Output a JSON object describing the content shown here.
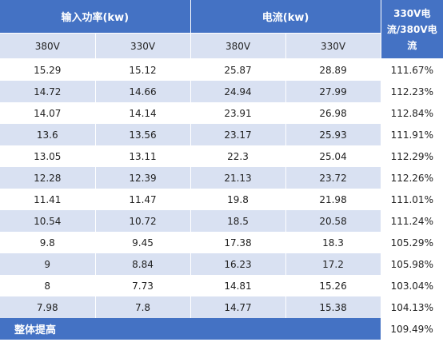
{
  "chart_data": {
    "type": "table",
    "group_headers": {
      "input_power": "输入功率(kw)",
      "current": "电流(kw)",
      "ratio": "330V电流/380V电流"
    },
    "sub_headers": [
      "380V",
      "330V",
      "380V",
      "330V"
    ],
    "rows": [
      {
        "p380": "15.29",
        "p330": "15.12",
        "i380": "25.87",
        "i330": "28.89",
        "ratio": "111.67%"
      },
      {
        "p380": "14.72",
        "p330": "14.66",
        "i380": "24.94",
        "i330": "27.99",
        "ratio": "112.23%"
      },
      {
        "p380": "14.07",
        "p330": "14.14",
        "i380": "23.91",
        "i330": "26.98",
        "ratio": "112.84%"
      },
      {
        "p380": "13.6",
        "p330": "13.56",
        "i380": "23.17",
        "i330": "25.93",
        "ratio": "111.91%"
      },
      {
        "p380": "13.05",
        "p330": "13.11",
        "i380": "22.3",
        "i330": "25.04",
        "ratio": "112.29%"
      },
      {
        "p380": "12.28",
        "p330": "12.39",
        "i380": "21.13",
        "i330": "23.72",
        "ratio": "112.26%"
      },
      {
        "p380": "11.41",
        "p330": "11.47",
        "i380": "19.8",
        "i330": "21.98",
        "ratio": "111.01%"
      },
      {
        "p380": "10.54",
        "p330": "10.72",
        "i380": "18.5",
        "i330": "20.58",
        "ratio": "111.24%"
      },
      {
        "p380": "9.8",
        "p330": "9.45",
        "i380": "17.38",
        "i330": "18.3",
        "ratio": "105.29%"
      },
      {
        "p380": "9",
        "p330": "8.84",
        "i380": "16.23",
        "i330": "17.2",
        "ratio": "105.98%"
      },
      {
        "p380": "8",
        "p330": "7.73",
        "i380": "14.81",
        "i330": "15.26",
        "ratio": "103.04%"
      },
      {
        "p380": "7.98",
        "p330": "7.8",
        "i380": "14.77",
        "i330": "15.38",
        "ratio": "104.13%"
      }
    ],
    "summary": {
      "label": "整体提高",
      "value": "109.49%"
    }
  }
}
